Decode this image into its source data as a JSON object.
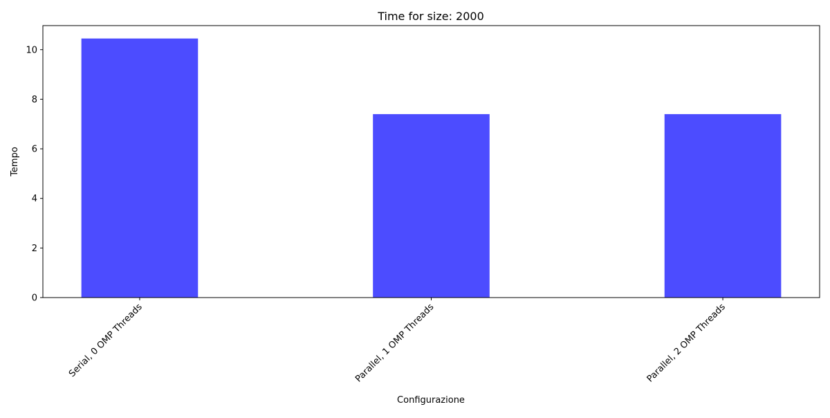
{
  "chart_data": {
    "type": "bar",
    "title": "Time for size: 2000",
    "xlabel": "Configurazione",
    "ylabel": "Tempo",
    "categories": [
      "Serial, 0 OMP Threads",
      "Parallel, 1 OMP Threads",
      "Parallel, 2 OMP Threads"
    ],
    "values": [
      10.45,
      7.4,
      7.4
    ],
    "ylim": [
      0,
      10.97
    ],
    "yticks": [
      "0",
      "2",
      "4",
      "6",
      "8",
      "10"
    ],
    "grid": false,
    "bar_color": "#4c4cff"
  }
}
